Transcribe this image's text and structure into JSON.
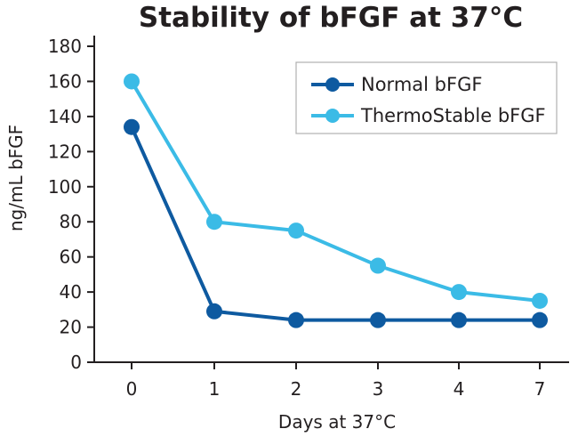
{
  "chart_data": {
    "type": "line",
    "title": "Stability of bFGF at 37°C",
    "xlabel": "Days at 37°C",
    "ylabel": "ng/mL bFGF",
    "categories": [
      "0",
      "1",
      "2",
      "3",
      "4",
      "7"
    ],
    "ylim": [
      0,
      180
    ],
    "yticks": [
      0,
      20,
      40,
      60,
      80,
      100,
      120,
      140,
      160,
      180
    ],
    "grid": false,
    "legend_position": "top-right",
    "series": [
      {
        "name": "Normal bFGF",
        "color": "#0e5aa0",
        "values": [
          134,
          29,
          24,
          24,
          24,
          24
        ]
      },
      {
        "name": "ThermoStable bFGF",
        "color": "#3bbbe6",
        "values": [
          160,
          80,
          75,
          55,
          40,
          35
        ]
      }
    ]
  }
}
